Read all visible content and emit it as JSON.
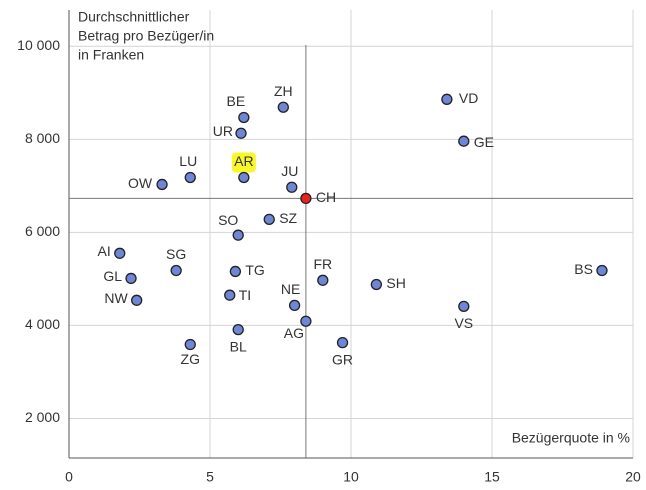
{
  "chart_data": {
    "type": "scatter",
    "ylabel": [
      "Durchschnittlicher",
      "Betrag pro Bezüger/in",
      "in Franken"
    ],
    "xlabel": "Bezügerquote in %",
    "labels": [
      "VD",
      "GE",
      "ZH",
      "BE",
      "UR",
      "LU",
      "OW",
      "AR",
      "JU",
      "CH",
      "SZ",
      "SO",
      "AI",
      "SG",
      "GL",
      "NW",
      "TG",
      "TI",
      "FR",
      "SH",
      "NE",
      "AG",
      "VS",
      "BS",
      "BL",
      "ZG",
      "GR"
    ],
    "x": [
      13.4,
      14.0,
      7.6,
      6.2,
      6.1,
      4.3,
      3.3,
      6.2,
      7.9,
      8.4,
      7.1,
      6.0,
      1.8,
      3.8,
      2.2,
      2.4,
      5.9,
      5.7,
      9.0,
      10.9,
      8.0,
      8.4,
      14.0,
      18.9,
      6.0,
      4.3,
      9.7
    ],
    "y": [
      8860,
      7960,
      8690,
      8470,
      8130,
      7180,
      7030,
      7180,
      6970,
      6730,
      6280,
      5940,
      5550,
      5180,
      5010,
      4540,
      5160,
      4650,
      4970,
      4880,
      4430,
      4090,
      4410,
      5180,
      3910,
      3590,
      3630
    ],
    "color": "#6f86d6",
    "reference": "CH",
    "reference_color": "#e8231e",
    "highlighted": "AR",
    "highlight_color": "#f7f72a",
    "xlim": [
      0,
      20
    ],
    "xticks": [
      0,
      5,
      10,
      15,
      20
    ],
    "ylim": [
      1150,
      10780
    ],
    "yticks": [
      {
        "value": 2000,
        "label": "2 000"
      },
      {
        "value": 4000,
        "label": "4 000"
      },
      {
        "value": 6000,
        "label": "6 000"
      },
      {
        "value": 8000,
        "label": "8 000"
      },
      {
        "value": 10000,
        "label": "10 000"
      }
    ],
    "grid": true
  }
}
